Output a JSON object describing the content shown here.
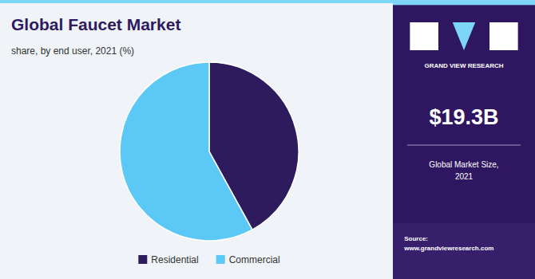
{
  "chart_data": {
    "type": "pie",
    "title": "Global Faucet Market",
    "subtitle": "share, by end user, 2021 (%)",
    "categories": [
      "Residential",
      "Commercial"
    ],
    "values": [
      42,
      58
    ],
    "colors": [
      "#2d1b5e",
      "#5bc8f5"
    ],
    "legend": "bottom",
    "annotations": [
      "GRAND VIEW RESEARCH",
      "$19.3B",
      "Global Market Size,\n2021",
      "Source:\nwww.grandviewresearch.com"
    ]
  }
}
